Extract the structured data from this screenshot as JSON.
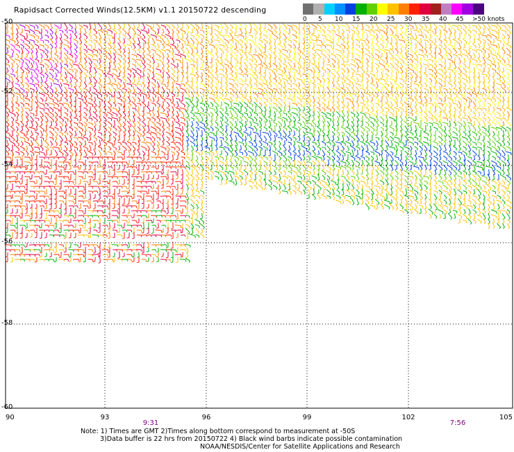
{
  "title": "Rapidsact Corrected Winds(12.5KM) v1.1 20150722 descending",
  "colorbar": {
    "labels": [
      "0",
      "5",
      "10",
      "15",
      "20",
      "25",
      "30",
      "35",
      "40",
      "45",
      ">50 knots"
    ],
    "colors": [
      "#707070",
      "#b0b0b0",
      "#00d0ff",
      "#0090ff",
      "#0040e0",
      "#00b000",
      "#60d000",
      "#ffff00",
      "#ffc000",
      "#ff8000",
      "#ff2000",
      "#e00040",
      "#a02020",
      "#c080c0",
      "#ff00ff",
      "#a000e0",
      "#4b0080"
    ]
  },
  "map": {
    "lat_labels": [
      "-50",
      "-52",
      "-54",
      "-56",
      "-58",
      "-60"
    ],
    "lon_labels": [
      "90",
      "93",
      "96",
      "99",
      "102",
      "105"
    ],
    "time_labels": [
      "9:31",
      "7:56"
    ]
  },
  "notes": [
    "Note: 1) Times are GMT 2)Times along bottom correspond to measurement at -50S",
    "3)Data buffer is 22 hrs from 20150722 4) Black wind barbs indicate possible contamination",
    "NOAA/NESDIS/Center for Satellite Applications and Research"
  ]
}
